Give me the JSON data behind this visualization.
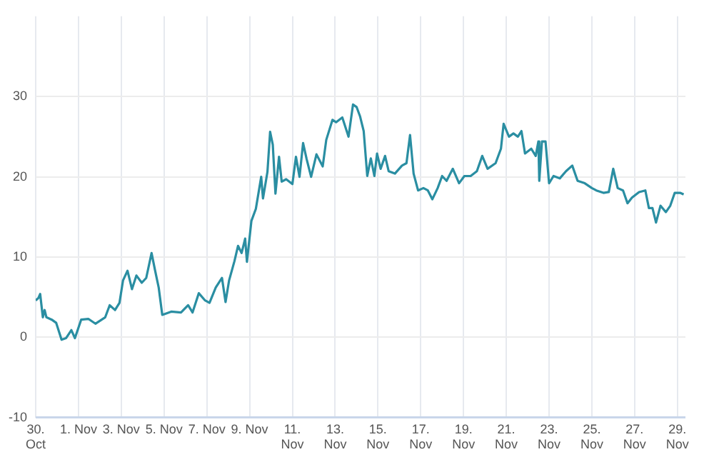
{
  "chart_data": {
    "type": "line",
    "grid": true,
    "legend": false,
    "marker": "none",
    "line_style": "solid",
    "xlim": [
      "--10-30T00:00",
      "--11-29T09:00"
    ],
    "ylim": [
      -10,
      40
    ],
    "yticks": [
      -10,
      0,
      10,
      20,
      30
    ],
    "xticks": [
      {
        "value": "--10-30",
        "label": "30.\nOct"
      },
      {
        "value": "--11-01",
        "label": "1. Nov"
      },
      {
        "value": "--11-03",
        "label": "3. Nov"
      },
      {
        "value": "--11-05",
        "label": "5. Nov"
      },
      {
        "value": "--11-07",
        "label": "7. Nov"
      },
      {
        "value": "--11-09",
        "label": "9. Nov"
      },
      {
        "value": "--11-11",
        "label": "11.\nNov"
      },
      {
        "value": "--11-13",
        "label": "13.\nNov"
      },
      {
        "value": "--11-15",
        "label": "15.\nNov"
      },
      {
        "value": "--11-17",
        "label": "17.\nNov"
      },
      {
        "value": "--11-19",
        "label": "19.\nNov"
      },
      {
        "value": "--11-21",
        "label": "21.\nNov"
      },
      {
        "value": "--11-23",
        "label": "23.\nNov"
      },
      {
        "value": "--11-25",
        "label": "25.\nNov"
      },
      {
        "value": "--11-27",
        "label": "27.\nNov"
      },
      {
        "value": "--11-29",
        "label": "29.\nNov"
      }
    ],
    "series": [
      {
        "color": "#2a8ea2",
        "x": [
          "--10-30T00:00",
          "--10-30T03:00",
          "--10-30T05:00",
          "--10-30T08:00",
          "--10-30T10:00",
          "--10-30T12:00",
          "--10-30T18:00",
          "--10-30T23:00",
          "--10-31T05:00",
          "--10-31T10:00",
          "--10-31T16:00",
          "--10-31T20:00",
          "--11-01T03:00",
          "--11-01T11:00",
          "--11-01T19:00",
          "--11-02T06:00",
          "--11-02T11:00",
          "--11-02T17:00",
          "--11-02T22:00",
          "--11-03T02:00",
          "--11-03T07:00",
          "--11-03T12:00",
          "--11-03T17:00",
          "--11-03T23:00",
          "--11-04T04:00",
          "--11-04T10:00",
          "--11-04T14:00",
          "--11-04T18:00",
          "--11-04T22:00",
          "--11-05T08:00",
          "--11-05T19:00",
          "--11-06T03:00",
          "--11-06T08:00",
          "--11-06T15:00",
          "--11-06T22:00",
          "--11-07T03:00",
          "--11-07T10:00",
          "--11-07T17:00",
          "--11-07T21:00",
          "--11-08T01:00",
          "--11-08T07:00",
          "--11-08T11:00",
          "--11-08T15:00",
          "--11-08T19:00",
          "--11-08T21:00",
          "--11-09T02:00",
          "--11-09T07:00",
          "--11-09T13:00",
          "--11-09T15:00",
          "--11-09T20:00",
          "--11-09T23:00",
          "--11-10T02:00",
          "--11-10T05:00",
          "--11-10T09:00",
          "--11-10T12:00",
          "--11-10T17:00",
          "--11-11T00:00",
          "--11-11T04:00",
          "--11-11T08:00",
          "--11-11T12:00",
          "--11-11T16:00",
          "--11-11T21:00",
          "--11-12T03:00",
          "--11-12T10:00",
          "--11-12T14:00",
          "--11-12T21:00",
          "--11-13T01:00",
          "--11-13T08:00",
          "--11-13T15:00",
          "--11-13T20:00",
          "--11-14T00:00",
          "--11-14T04:00",
          "--11-14T08:00",
          "--11-14T12:00",
          "--11-14T16:00",
          "--11-14T20:00",
          "--11-14T23:00",
          "--11-15T03:00",
          "--11-15T08:00",
          "--11-15T12:00",
          "--11-15T19:00",
          "--11-16T03:00",
          "--11-16T08:00",
          "--11-16T12:00",
          "--11-16T16:00",
          "--11-16T21:00",
          "--11-17T03:00",
          "--11-17T08:00",
          "--11-17T13:00",
          "--11-17T19:00",
          "--11-18T00:00",
          "--11-18T05:00",
          "--11-18T12:00",
          "--11-18T19:00",
          "--11-19T01:00",
          "--11-19T08:00",
          "--11-19T15:00",
          "--11-19T21:00",
          "--11-20T03:00",
          "--11-20T12:00",
          "--11-20T18:00",
          "--11-20T21:00",
          "--11-21T03:00",
          "--11-21T08:00",
          "--11-21T13:00",
          "--11-21T17:00",
          "--11-21T21:00",
          "--11-22T04:00",
          "--11-22T09:00",
          "--11-22T12:00",
          "--11-22T13:00",
          "--11-22T16:00",
          "--11-22T20:00",
          "--11-23T00:00",
          "--11-23T05:00",
          "--11-23T12:00",
          "--11-23T19:00",
          "--11-24T02:00",
          "--11-24T08:00",
          "--11-24T16:00",
          "--11-25T00:00",
          "--11-25T05:00",
          "--11-25T13:00",
          "--11-25T19:00",
          "--11-26T00:00",
          "--11-26T05:00",
          "--11-26T11:00",
          "--11-26T16:00",
          "--11-26T21:00",
          "--11-27T05:00",
          "--11-27T12:00",
          "--11-27T16:00",
          "--11-27T20:00",
          "--11-28T00:00",
          "--11-28T05:00",
          "--11-28T11:00",
          "--11-28T16:00",
          "--11-28T21:00",
          "--11-29T03:00",
          "--11-29T07:00"
        ],
        "values": [
          4.6,
          4.9,
          5.4,
          2.5,
          3.4,
          2.5,
          2.2,
          1.8,
          -0.3,
          -0.1,
          0.9,
          -0.1,
          2.2,
          2.3,
          1.7,
          2.5,
          4.0,
          3.4,
          4.3,
          7.1,
          8.3,
          6.0,
          7.7,
          6.8,
          7.4,
          10.5,
          8.3,
          6.2,
          2.8,
          3.2,
          3.1,
          4.0,
          3.1,
          5.5,
          4.6,
          4.3,
          6.2,
          7.4,
          4.4,
          7.1,
          9.5,
          11.4,
          10.5,
          12.3,
          9.4,
          14.5,
          16.0,
          20.0,
          17.3,
          20.6,
          25.6,
          24.0,
          17.9,
          22.5,
          19.4,
          19.7,
          19.1,
          22.5,
          20.0,
          24.2,
          22.2,
          20.0,
          22.8,
          21.3,
          24.6,
          27.1,
          26.8,
          27.4,
          25.0,
          29.0,
          28.7,
          27.5,
          25.7,
          20.1,
          22.3,
          20.1,
          22.9,
          21.0,
          22.6,
          20.7,
          20.4,
          21.4,
          21.7,
          25.2,
          20.4,
          18.3,
          18.6,
          18.3,
          17.2,
          18.6,
          20.1,
          19.5,
          21.0,
          19.2,
          20.1,
          20.1,
          20.7,
          22.6,
          21.0,
          21.7,
          23.5,
          26.6,
          25.0,
          25.4,
          25.0,
          25.7,
          22.9,
          23.5,
          22.6,
          24.4,
          19.5,
          24.4,
          24.4,
          19.2,
          20.1,
          19.8,
          20.7,
          21.4,
          19.5,
          19.2,
          18.6,
          18.3,
          18.0,
          18.1,
          21.0,
          18.6,
          18.3,
          16.7,
          17.4,
          18.1,
          18.3,
          16.1,
          16.1,
          14.3,
          16.4,
          15.6,
          16.4,
          18.0,
          18.0,
          17.8
        ]
      }
    ]
  }
}
